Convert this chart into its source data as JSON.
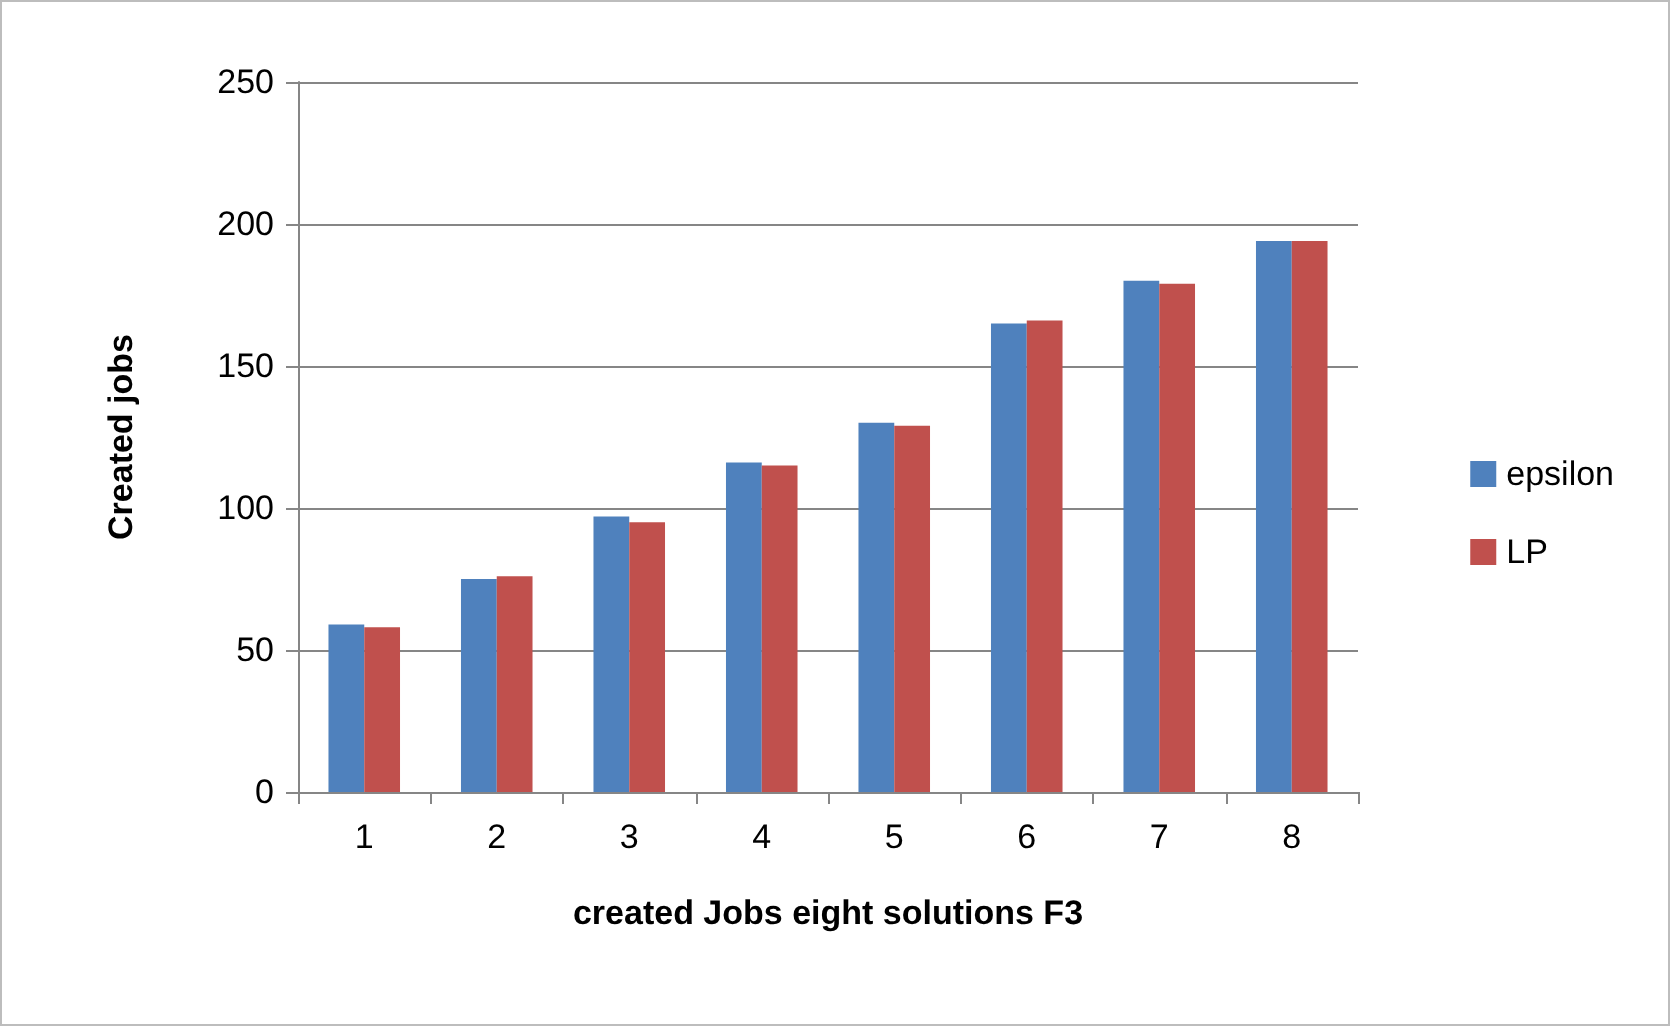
{
  "chart_data": {
    "type": "bar",
    "xlabel": "created Jobs eight solutions F3",
    "ylabel": "Created jobs",
    "categories": [
      "1",
      "2",
      "3",
      "4",
      "5",
      "6",
      "7",
      "8"
    ],
    "series": [
      {
        "name": "epsilon",
        "color": "#4f81bd",
        "values": [
          59,
          75,
          97,
          116,
          130,
          165,
          180,
          194
        ]
      },
      {
        "name": "LP",
        "color": "#c0504d",
        "values": [
          58,
          76,
          95,
          115,
          129,
          166,
          179,
          194
        ]
      }
    ],
    "ylim": [
      0,
      250
    ],
    "yticks": [
      0,
      50,
      100,
      150,
      200,
      250
    ],
    "grid": "y",
    "legend": "right"
  }
}
